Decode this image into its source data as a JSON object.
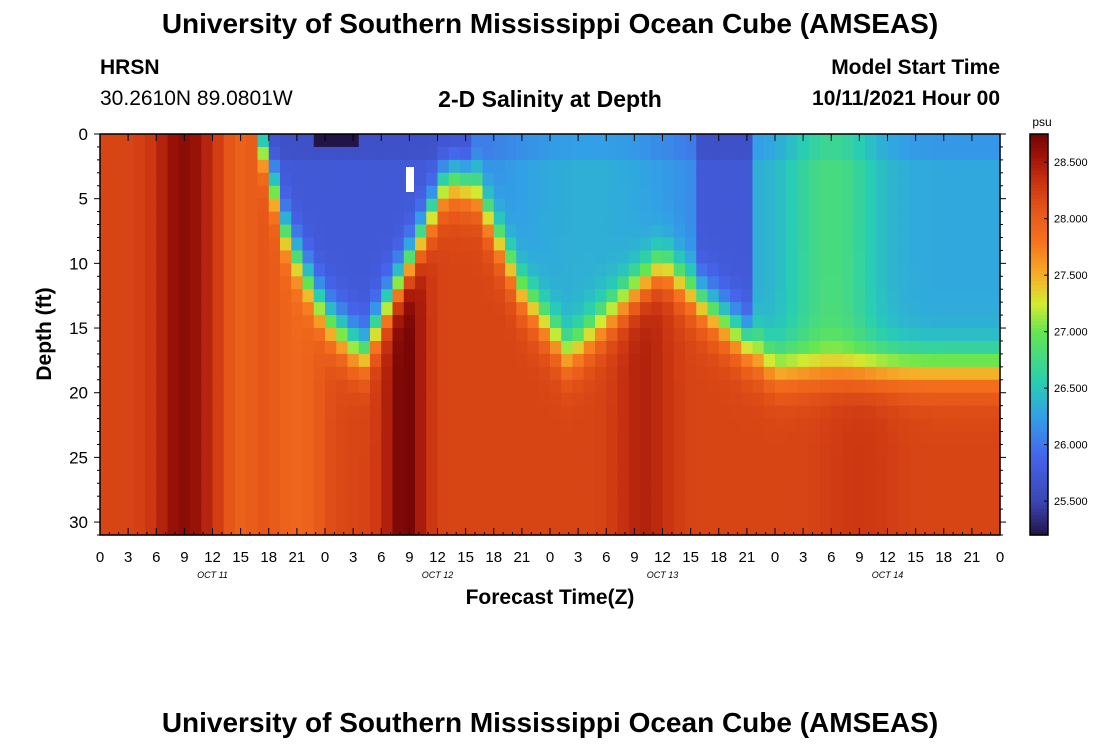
{
  "header": {
    "title": "University of Southern Mississippi Ocean Cube (AMSEAS)",
    "station": "HRSN",
    "coords": "30.2610N  89.0801W",
    "plot_title": "2-D Salinity at Depth",
    "model_start_label": "Model Start Time",
    "model_start_value": "10/11/2021 Hour 00"
  },
  "footer": {
    "title": "University of Southern Mississippi Ocean Cube (AMSEAS)"
  },
  "chart_data": {
    "type": "heatmap",
    "title": "2-D Salinity at Depth",
    "xlabel": "Forecast Time(Z)",
    "ylabel": "Depth (ft)",
    "x_range_hours": [
      0,
      96
    ],
    "x_tick_labels": [
      "0",
      "3",
      "6",
      "9",
      "12",
      "15",
      "18",
      "21",
      "0",
      "3",
      "6",
      "9",
      "12",
      "15",
      "18",
      "21",
      "0",
      "3",
      "6",
      "9",
      "12",
      "15",
      "18",
      "21",
      "0",
      "3",
      "6",
      "9",
      "12",
      "15",
      "18",
      "21",
      "0"
    ],
    "day_labels": [
      "OCT 11",
      "OCT 12",
      "OCT 13",
      "OCT 14"
    ],
    "ylim": [
      0,
      31
    ],
    "y_ticks": [
      0,
      5,
      10,
      15,
      20,
      25,
      30
    ],
    "colorbar": {
      "unit": "psu",
      "range": [
        25.2,
        28.75
      ],
      "tick_values": [
        28.5,
        28.0,
        27.5,
        27.0,
        26.5,
        26.0,
        25.5
      ],
      "tick_labels": [
        "28.500",
        "28.000",
        "27.500",
        "27.000",
        "26.500",
        "26.000",
        "25.500"
      ]
    },
    "field_description": {
      "deep_salinity_psu": 28.2,
      "max_salinity_psu": 28.75,
      "min_salinity_psu": 25.2,
      "halocline_depth_ft": [
        {
          "hour": 17,
          "depth": 0
        },
        {
          "hour": 20,
          "depth": 8
        },
        {
          "hour": 24,
          "depth": 14
        },
        {
          "hour": 28,
          "depth": 17
        },
        {
          "hour": 33,
          "depth": 10
        },
        {
          "hour": 37,
          "depth": 3.5
        },
        {
          "hour": 40,
          "depth": 4
        },
        {
          "hour": 45,
          "depth": 12
        },
        {
          "hour": 50,
          "depth": 17
        },
        {
          "hour": 57,
          "depth": 12
        },
        {
          "hour": 60,
          "depth": 10
        },
        {
          "hour": 66,
          "depth": 14
        },
        {
          "hour": 72,
          "depth": 18
        },
        {
          "hour": 96,
          "depth": 18
        }
      ]
    }
  }
}
